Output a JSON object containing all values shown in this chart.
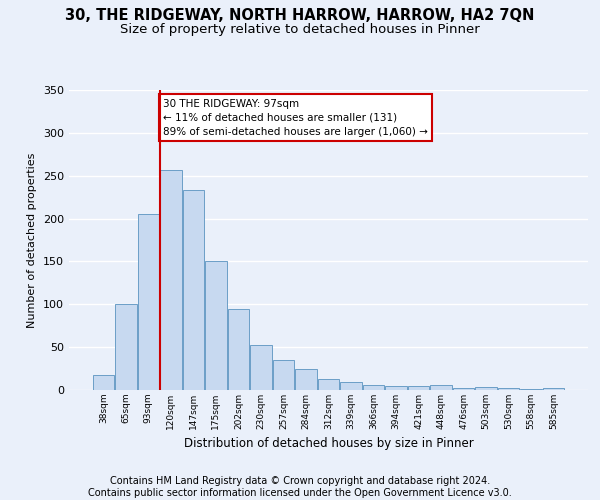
{
  "title": "30, THE RIDGEWAY, NORTH HARROW, HARROW, HA2 7QN",
  "subtitle": "Size of property relative to detached houses in Pinner",
  "xlabel": "Distribution of detached houses by size in Pinner",
  "ylabel": "Number of detached properties",
  "bar_values": [
    18,
    100,
    205,
    257,
    233,
    150,
    95,
    52,
    35,
    25,
    13,
    9,
    6,
    5,
    5,
    6,
    2,
    3,
    2,
    1,
    2
  ],
  "bar_labels": [
    "38sqm",
    "65sqm",
    "93sqm",
    "120sqm",
    "147sqm",
    "175sqm",
    "202sqm",
    "230sqm",
    "257sqm",
    "284sqm",
    "312sqm",
    "339sqm",
    "366sqm",
    "394sqm",
    "421sqm",
    "448sqm",
    "476sqm",
    "503sqm",
    "530sqm",
    "558sqm",
    "585sqm"
  ],
  "bar_color": "#c7d9f0",
  "bar_edge_color": "#6b9ec7",
  "ylim": [
    0,
    350
  ],
  "yticks": [
    0,
    50,
    100,
    150,
    200,
    250,
    300,
    350
  ],
  "property_line_color": "#cc0000",
  "annotation_text": "30 THE RIDGEWAY: 97sqm\n← 11% of detached houses are smaller (131)\n89% of semi-detached houses are larger (1,060) →",
  "annotation_box_color": "#ffffff",
  "annotation_box_edge_color": "#cc0000",
  "footer_text": "Contains HM Land Registry data © Crown copyright and database right 2024.\nContains public sector information licensed under the Open Government Licence v3.0.",
  "bg_color": "#eaf0fa",
  "plot_bg_color": "#eaf0fa",
  "grid_color": "#ffffff",
  "title_fontsize": 10.5,
  "subtitle_fontsize": 9.5,
  "footer_fontsize": 7.0
}
